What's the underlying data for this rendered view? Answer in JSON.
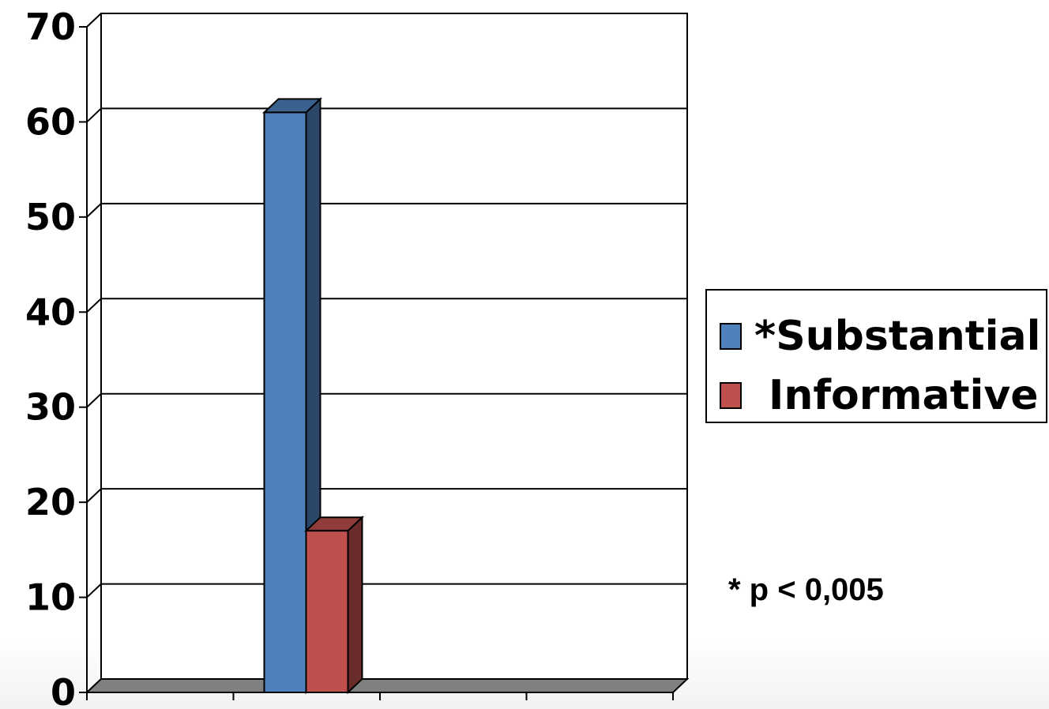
{
  "chart_data": {
    "type": "bar",
    "y_ticks": [
      "0",
      "10",
      "20",
      "30",
      "40",
      "50",
      "60",
      "70"
    ],
    "ylim": [
      0,
      70
    ],
    "grid": true,
    "three_d": true,
    "group_count": 4,
    "group_index": 1,
    "series": [
      {
        "name": "*Substantial",
        "value": 61,
        "color": "#4f81bd"
      },
      {
        "name": "Informative",
        "value": 17,
        "color": "#c0504d"
      }
    ],
    "legend_position": "right",
    "annotation": "* p < 0,005"
  }
}
